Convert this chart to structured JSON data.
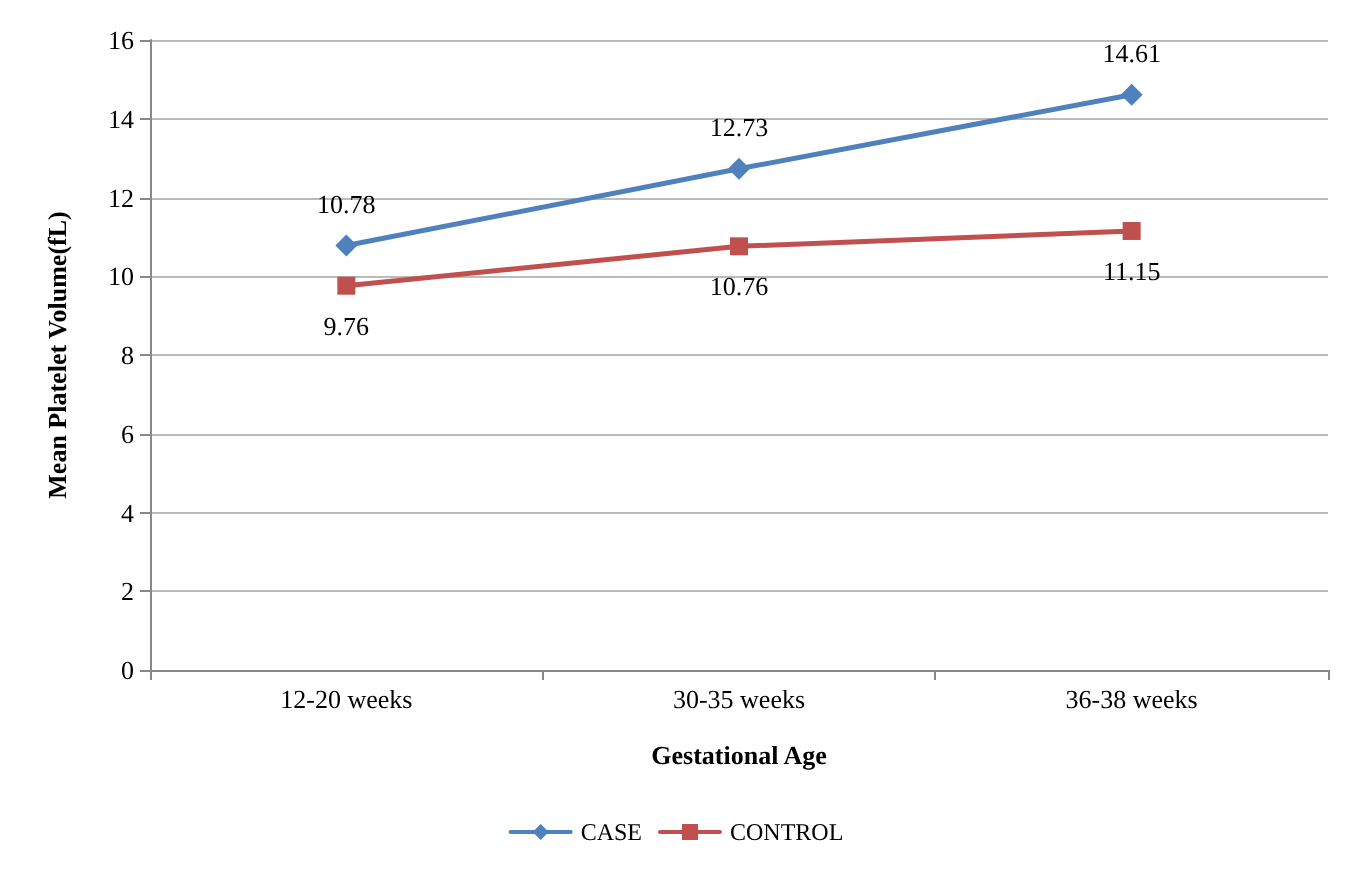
{
  "chart_data": {
    "type": "line",
    "xlabel": "Gestational Age",
    "ylabel": "Mean Platelet Volume(fL)",
    "categories": [
      "12-20 weeks",
      "30-35 weeks",
      "36-38 weeks"
    ],
    "series": [
      {
        "name": "CASE",
        "color": "#4f81bd",
        "marker": "diamond",
        "values": [
          10.78,
          12.73,
          14.61
        ]
      },
      {
        "name": "CONTROL",
        "color": "#c0504d",
        "marker": "square",
        "values": [
          9.76,
          10.76,
          11.15
        ]
      }
    ],
    "ylim": [
      0,
      16
    ],
    "yticks": [
      0,
      2,
      4,
      6,
      8,
      10,
      12,
      14,
      16
    ],
    "grid": "y",
    "legend": "bottom",
    "data_labels": true,
    "line_style": "solid"
  }
}
